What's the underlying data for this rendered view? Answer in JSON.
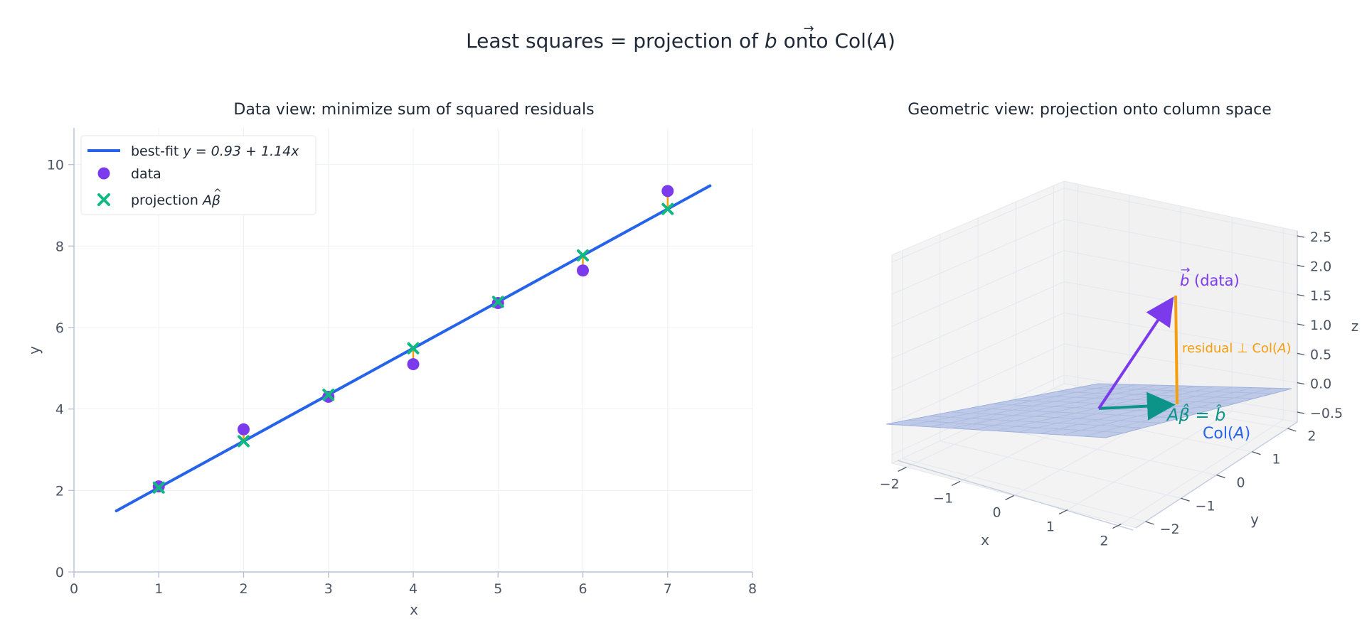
{
  "figure": {
    "title_prefix": "Least squares = projection of ",
    "title_vector": "b",
    "title_suffix": " onto Col(",
    "title_matrix": "A",
    "title_end": ")"
  },
  "chart_data": [
    {
      "type": "scatter",
      "title": "Data view: minimize sum of squared residuals",
      "xlabel": "x",
      "ylabel": "y",
      "xlim": [
        0,
        8
      ],
      "ylim": [
        0,
        10.9
      ],
      "xticks": [
        "0",
        "1",
        "2",
        "3",
        "4",
        "5",
        "6",
        "7",
        "8"
      ],
      "yticks": [
        "0",
        "2",
        "4",
        "6",
        "8",
        "10"
      ],
      "grid": true,
      "legend_placement": "upper-left",
      "fit": {
        "intercept": 0.93,
        "slope": 1.14,
        "x_range": [
          0.5,
          7.5
        ],
        "color": "#2563eb"
      },
      "series": [
        {
          "name": "data",
          "color": "#7c3aed",
          "x": [
            1,
            2,
            3,
            4,
            5,
            6,
            7
          ],
          "y": [
            2.1,
            3.5,
            4.3,
            5.1,
            6.6,
            7.4,
            9.35
          ]
        },
        {
          "name": "projection",
          "color": "#10b981",
          "x": [
            1,
            2,
            3,
            4,
            5,
            6,
            7
          ],
          "y": [
            2.07,
            3.21,
            4.35,
            5.49,
            6.63,
            7.77,
            8.91
          ]
        }
      ],
      "residual_color": "#f59e0b",
      "legend": {
        "fit_label": "best-fit  ",
        "fit_equation": "y = 0.93 + 1.14x",
        "data_label": "data",
        "projection_label": "projection "
      }
    },
    {
      "type": "vector-3d",
      "title": "Geometric view: projection onto column space",
      "xlabel": "x",
      "ylabel": "y",
      "zlabel": "z",
      "xticks": [
        "−2",
        "−1",
        "0",
        "1",
        "2"
      ],
      "yticks": [
        "−2",
        "−1",
        "0",
        "1",
        "2"
      ],
      "zticks": [
        "−0.5",
        "0.0",
        "0.5",
        "1.0",
        "1.5",
        "2.0",
        "2.5"
      ],
      "vectors": [
        {
          "name": "b (data)",
          "from": [
            0,
            0,
            0
          ],
          "to": [
            0.2,
            1.6,
            1.7
          ],
          "color": "#7c3aed"
        },
        {
          "name": "projection",
          "from": [
            0,
            0,
            0
          ],
          "to": [
            0.2,
            1.6,
            0.0
          ],
          "color": "#0d9488"
        },
        {
          "name": "residual",
          "from": [
            0.2,
            1.6,
            0.0
          ],
          "to": [
            0.2,
            1.6,
            1.7
          ],
          "color": "#f59e0b"
        }
      ],
      "plane": {
        "name": "Col(A)",
        "color": "#93a8dc"
      },
      "labels": {
        "b_vector": "b",
        "b_rest": " (data)",
        "residual": "residual ⊥ Col(",
        "residual_matrix": "A",
        "residual_end": ")",
        "projection": "Aβ̂ = b̂",
        "plane_prefix": "Col(",
        "plane_matrix": "A",
        "plane_end": ")"
      }
    }
  ]
}
